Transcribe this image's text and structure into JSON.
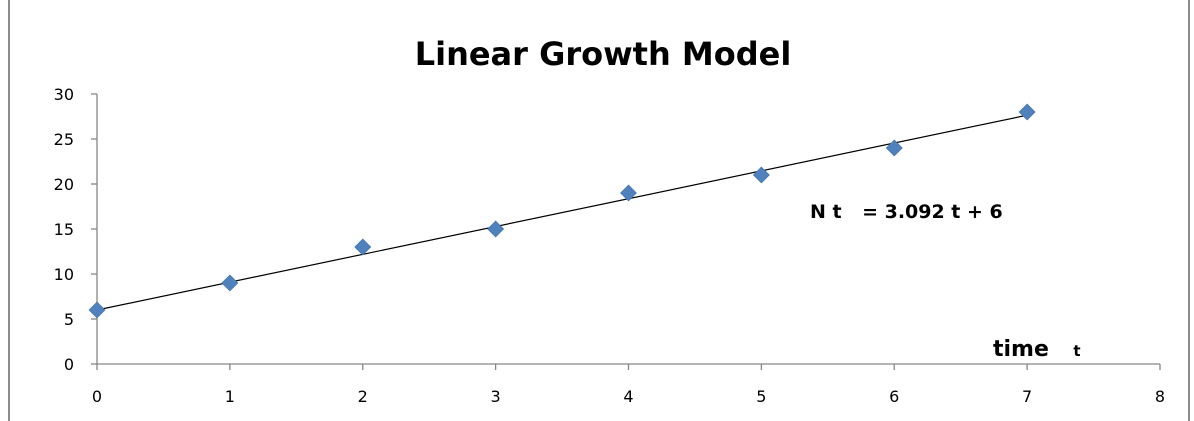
{
  "chart_data": {
    "type": "scatter",
    "title": "Linear Growth Model",
    "xlabel": "time",
    "xlabel_symbol": "t",
    "ylabel": "",
    "xlim": [
      0,
      8
    ],
    "ylim": [
      0,
      30
    ],
    "x_ticks": [
      "0",
      "1",
      "2",
      "3",
      "4",
      "5",
      "6",
      "7",
      "8"
    ],
    "y_ticks": [
      "0",
      "5",
      "10",
      "15",
      "20",
      "25",
      "30"
    ],
    "grid": false,
    "legend": "none",
    "series": [
      {
        "marker": "diamond",
        "color": "#4F81BD",
        "x": [
          0,
          1,
          2,
          3,
          4,
          5,
          6,
          7
        ],
        "y": [
          6,
          9,
          13,
          15,
          19,
          21,
          24,
          28
        ]
      }
    ],
    "trendline": {
      "slope": 3.092,
      "intercept": 6,
      "x_range": [
        0,
        7
      ],
      "color": "#000000",
      "equation_left": "N t",
      "equation_right": "= 3.092 t + 6"
    }
  }
}
